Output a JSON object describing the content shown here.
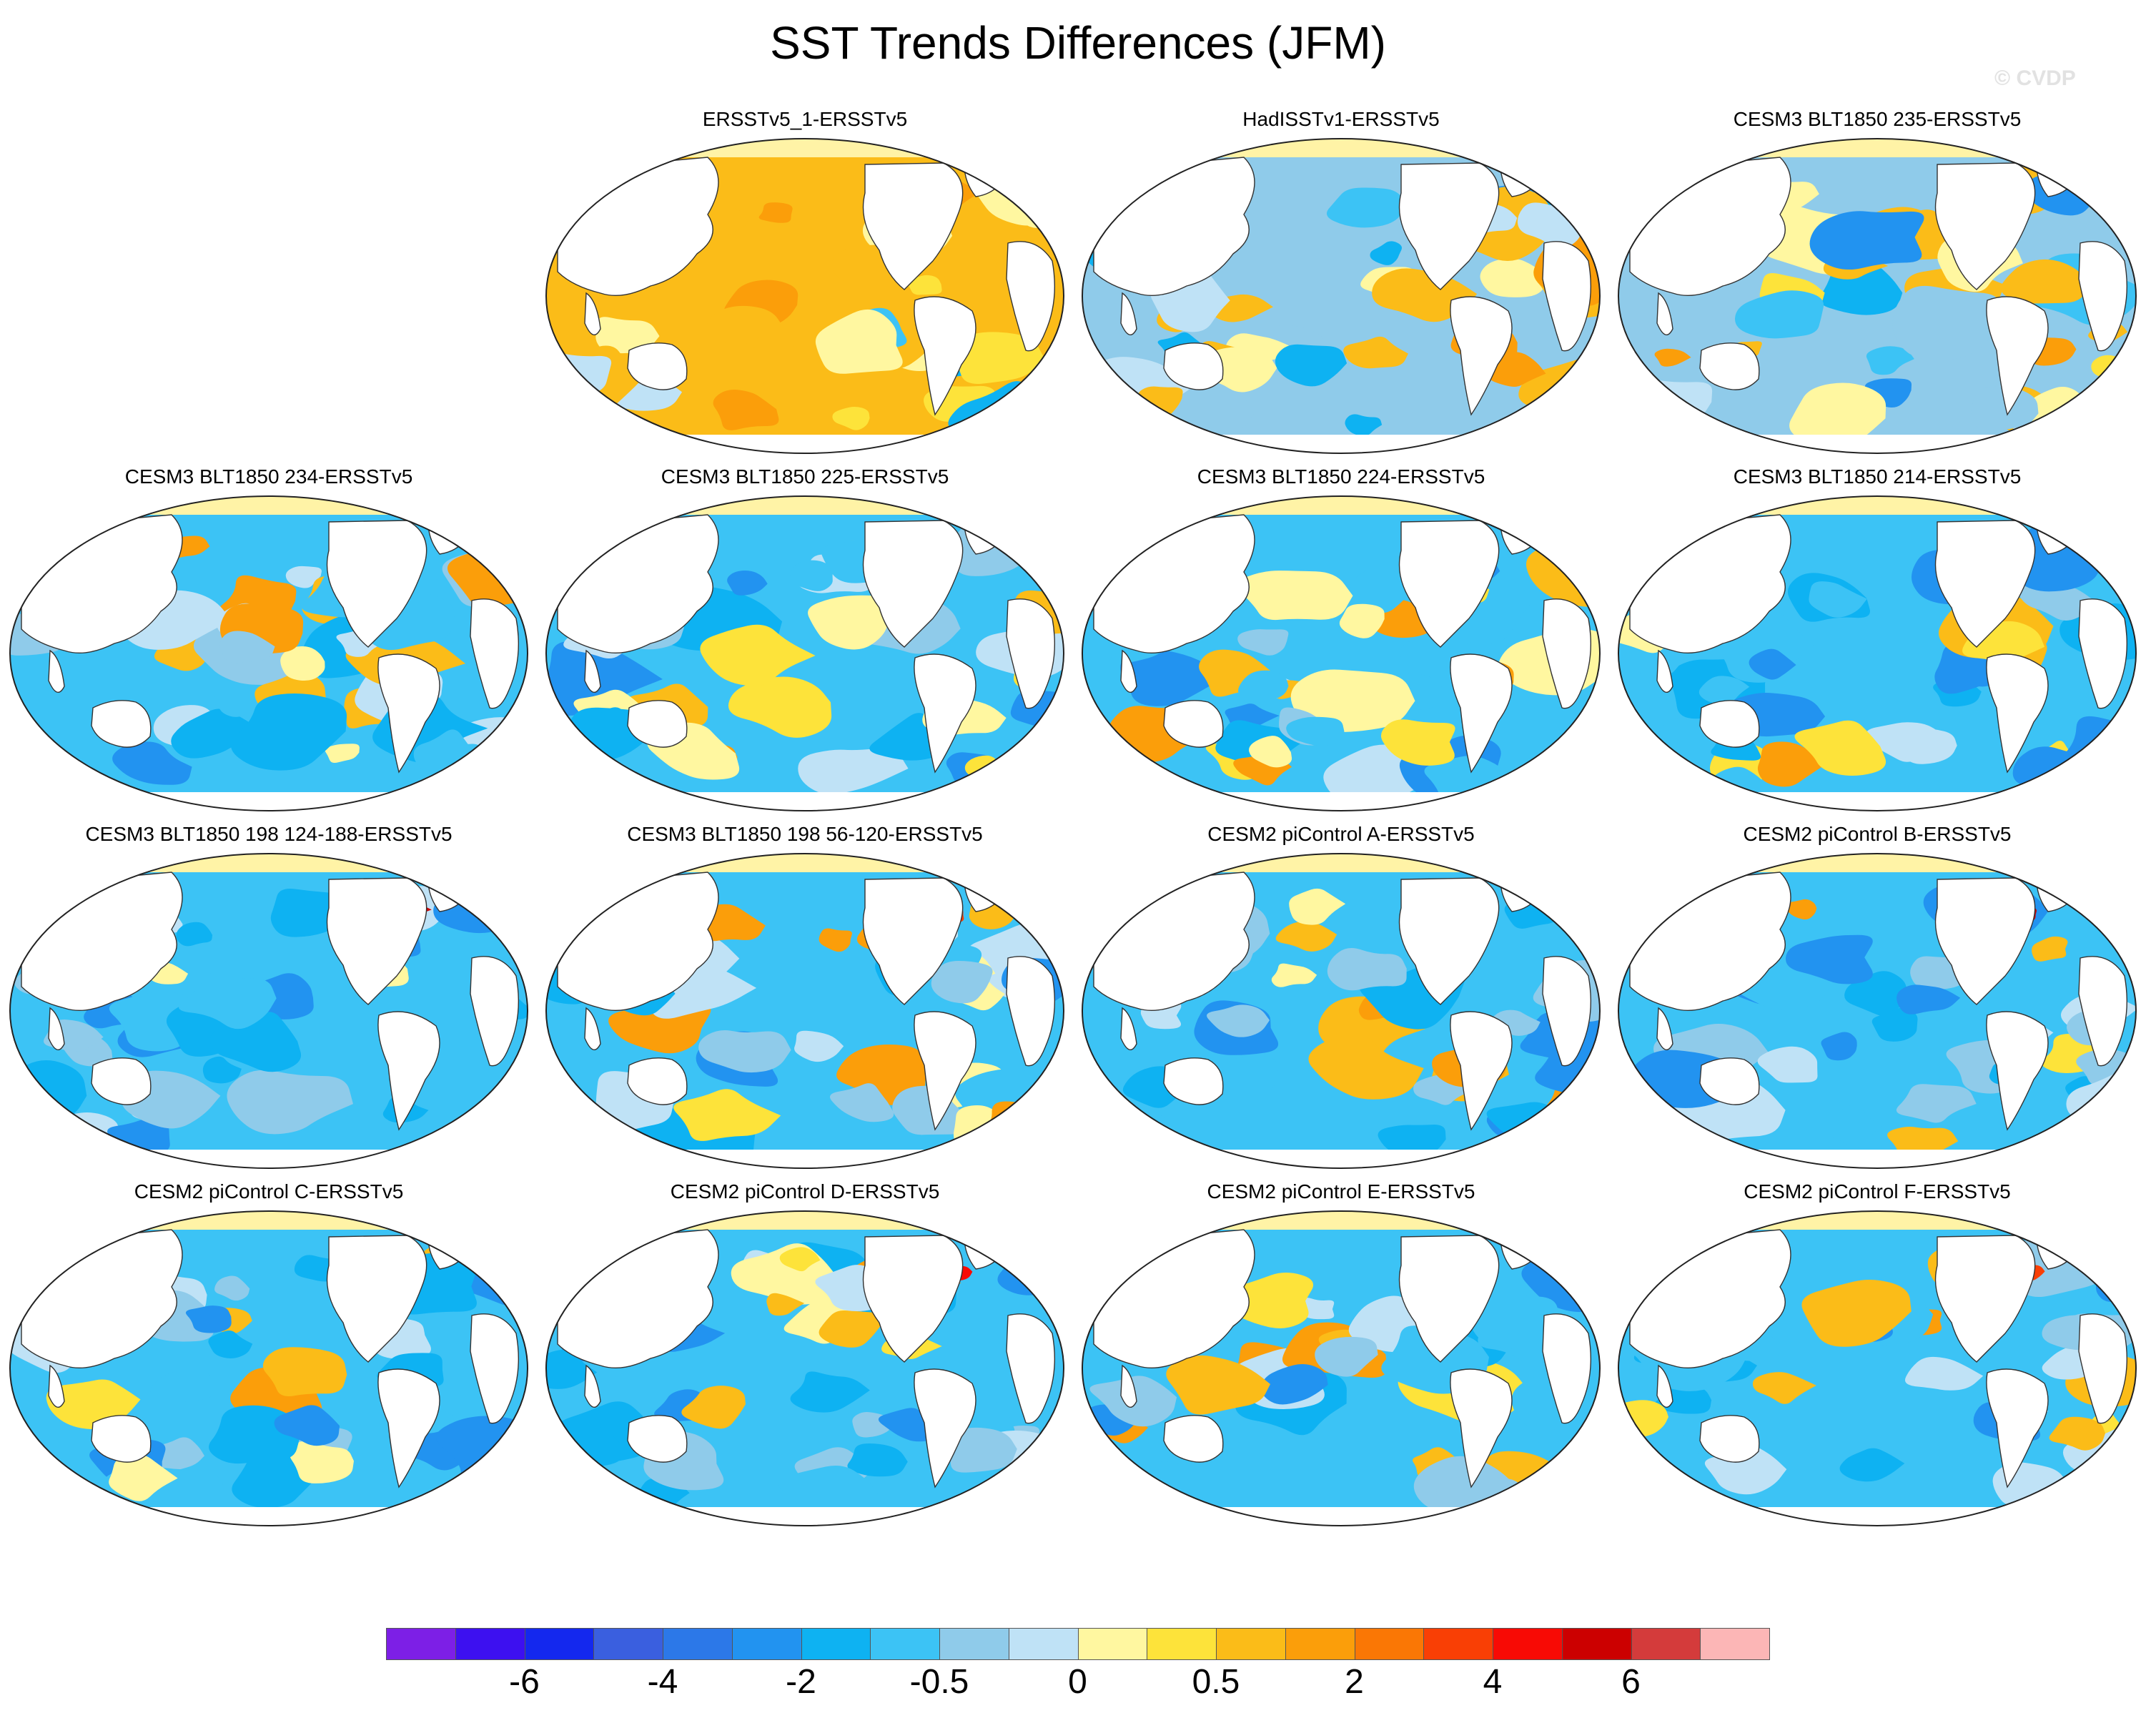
{
  "title": "SST Trends Differences (JFM)",
  "watermark": "© CVDP",
  "land_color": "#ffffff",
  "sea_ice_color": "#fff3a6",
  "panels": [
    {
      "title": "ERSSTv5_1-ERSSTv5",
      "dominant": "warm"
    },
    {
      "title": "HadISSTv1-ERSSTv5",
      "dominant": "mixed"
    },
    {
      "title": "CESM3 BLT1850 235-ERSSTv5",
      "dominant": "mixed"
    },
    {
      "title": "CESM3 BLT1850 234-ERSSTv5",
      "dominant": "cool"
    },
    {
      "title": "CESM3 BLT1850 225-ERSSTv5",
      "dominant": "cool"
    },
    {
      "title": "CESM3 BLT1850 224-ERSSTv5",
      "dominant": "cool"
    },
    {
      "title": "CESM3 BLT1850 214-ERSSTv5",
      "dominant": "cool"
    },
    {
      "title": "CESM3 BLT1850 198 124-188-ERSSTv5",
      "dominant": "cool"
    },
    {
      "title": "CESM3 BLT1850 198 56-120-ERSSTv5",
      "dominant": "cool"
    },
    {
      "title": "CESM2 piControl A-ERSSTv5",
      "dominant": "cool"
    },
    {
      "title": "CESM2 piControl B-ERSSTv5",
      "dominant": "cool"
    },
    {
      "title": "CESM2 piControl C-ERSSTv5",
      "dominant": "cool"
    },
    {
      "title": "CESM2 piControl D-ERSSTv5",
      "dominant": "cool"
    },
    {
      "title": "CESM2 piControl E-ERSSTv5",
      "dominant": "cool"
    },
    {
      "title": "CESM2 piControl F-ERSSTv5",
      "dominant": "cool"
    }
  ],
  "colorbar": {
    "colors": [
      "#7d1fe6",
      "#3d10f0",
      "#1428ee",
      "#3a5fdf",
      "#2c78e8",
      "#2293f0",
      "#0eb2f2",
      "#3cc3f5",
      "#8fcbea",
      "#bfe2f6",
      "#fff7a0",
      "#fde33a",
      "#fbbc18",
      "#fb9e0a",
      "#fa7705",
      "#f93f05",
      "#f80a05",
      "#cc0000",
      "#d43b3b",
      "#fcb6b6"
    ],
    "tick_labels": [
      "-6",
      "-4",
      "-2",
      "-0.5",
      "0",
      "0.5",
      "2",
      "4",
      "6"
    ]
  }
}
